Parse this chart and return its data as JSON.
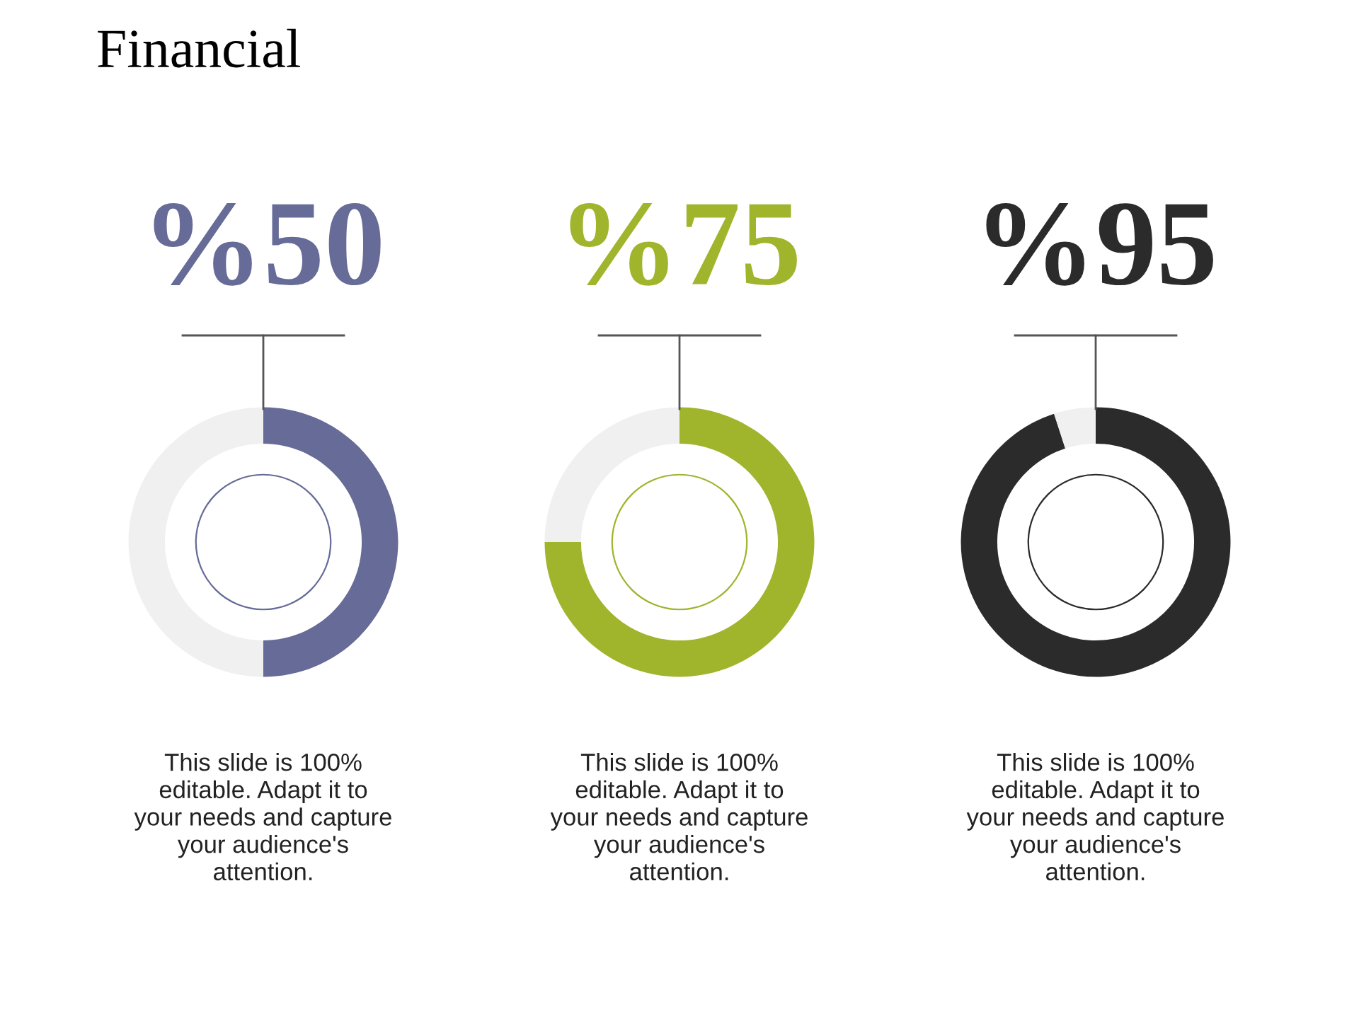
{
  "chart_data": [
    {
      "type": "other",
      "title": "Financial"
    },
    {
      "type": "donut",
      "title": "%50",
      "categories": [
        null,
        null
      ],
      "values": [
        50,
        50
      ],
      "colors": [
        "#666b97",
        "#f0f0f0"
      ],
      "annotations": [
        "This slide is 100%\neditable. Adapt it to\nyour needs and capture\nyour audience's\nattention."
      ]
    },
    {
      "type": "donut",
      "title": "%75",
      "categories": [
        null,
        null
      ],
      "values": [
        75,
        25
      ],
      "colors": [
        "#a0b42c",
        "#f0f0f0"
      ],
      "annotations": [
        "This slide is 100%\neditable. Adapt it to\nyour needs and capture\nyour audience's\nattention."
      ]
    },
    {
      "type": "donut",
      "title": "%95",
      "categories": [
        null,
        null
      ],
      "values": [
        95,
        5
      ],
      "colors": [
        "#2b2b2b",
        "#f0f0f0"
      ],
      "annotations": [
        "This slide is 100%\neditable. Adapt it to\nyour needs and capture\nyour audience's\nattention."
      ]
    }
  ]
}
